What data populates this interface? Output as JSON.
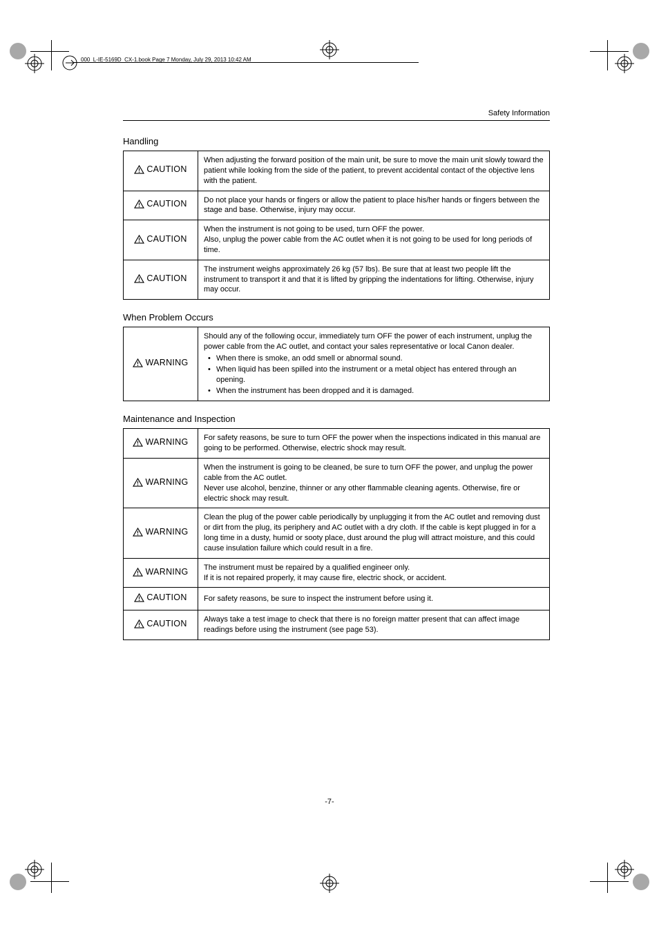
{
  "bookLabel": "000_L-IE-5169D_CX-1.book  Page 7  Monday, July 29, 2013  10:42 AM",
  "headerRight": "Safety Information",
  "pageNumber": "-7-",
  "labels": {
    "CAUTION": "CAUTION",
    "WARNING": "WARNING"
  },
  "sections": {
    "handling": {
      "title": "Handling",
      "rows": [
        {
          "level": "CAUTION",
          "text": "When adjusting the forward position of the main unit, be sure to move the main unit slowly toward the patient while looking from the side of the patient, to prevent accidental contact of the objective lens with the patient."
        },
        {
          "level": "CAUTION",
          "text": "Do not place your hands or fingers or allow the patient to place his/her hands or fingers between the stage and base. Otherwise, injury may occur."
        },
        {
          "level": "CAUTION",
          "text": "When the instrument is not going to be used, turn OFF the power.\nAlso, unplug the power cable from the AC outlet when it is not going to be used for long periods of time."
        },
        {
          "level": "CAUTION",
          "text": "The instrument weighs approximately 26 kg (57 lbs). Be sure that at least two people lift the instrument to transport it and that it is lifted by gripping the indentations for lifting. Otherwise, injury may occur."
        }
      ]
    },
    "problem": {
      "title": "When Problem Occurs",
      "rows": [
        {
          "level": "WARNING",
          "lead": "Should any of the following occur, immediately turn OFF the power of each instrument, unplug the power cable from the AC outlet, and contact your sales representative or local Canon dealer.",
          "bullets": [
            "When there is smoke, an odd smell or abnormal sound.",
            "When liquid has been spilled into the instrument or a metal object has entered through an opening.",
            "When the instrument has been dropped and it is damaged."
          ]
        }
      ]
    },
    "maintenance": {
      "title": "Maintenance and Inspection",
      "rows": [
        {
          "level": "WARNING",
          "text": "For safety reasons, be sure to turn OFF the power when the inspections indicated in this manual are going to be performed. Otherwise, electric shock may result."
        },
        {
          "level": "WARNING",
          "text": "When the instrument is going to be cleaned, be sure to turn OFF the power, and unplug the power cable from the AC outlet.\nNever use alcohol, benzine, thinner or any other flammable cleaning agents. Otherwise, fire or electric shock may result."
        },
        {
          "level": "WARNING",
          "text": "Clean the plug of the power cable periodically by unplugging it from the AC outlet and removing dust or dirt from the plug, its periphery and AC outlet with a dry cloth. If the cable is kept plugged in for a long time in a dusty, humid or sooty place, dust around the plug will attract moisture, and this could cause insulation failure which could result in a fire."
        },
        {
          "level": "WARNING",
          "text": "The instrument must be repaired by a qualified engineer only.\nIf it is not repaired properly, it may cause fire, electric shock, or accident."
        },
        {
          "level": "CAUTION",
          "text": "For safety reasons, be sure to inspect the instrument before using it."
        },
        {
          "level": "CAUTION",
          "text": "Always take a test image to check that there is no foreign matter present that can affect image readings before using the instrument (see page 53)."
        }
      ]
    }
  }
}
